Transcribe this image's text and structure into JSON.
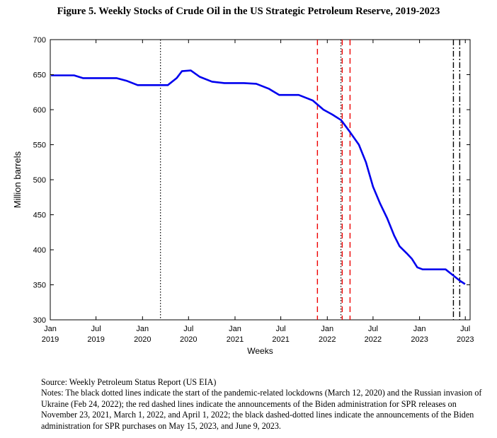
{
  "title": "Figure 5. Weekly Stocks of Crude Oil in the US Strategic Petroleum Reserve, 2019-2023",
  "source": "Source: Weekly Petroleum Status Report (US EIA)",
  "notes": "Notes: The black dotted lines indicate the start of the pandemic-related lockdowns (March 12, 2020) and the Russian invasion of Ukraine (Feb 24, 2022); the red dashed lines indicate the announcements of the Biden administration for SPR releases on November 23, 2021, March 1, 2022, and April 1, 2022; the black dashed-dotted lines indicate the announcements of the Biden administration for SPR purchases on May 15, 2023, and June 9, 2023.",
  "colors": {
    "series": "#0000ee",
    "red_lines": "#ee0000",
    "black_lines": "#000000"
  },
  "chart_data": {
    "type": "line",
    "xlabel": "Weeks",
    "ylabel": "Million barrels",
    "xlim": [
      "2019-01-01",
      "2023-07-20"
    ],
    "ylim": [
      300,
      700
    ],
    "yticks": [
      300,
      350,
      400,
      450,
      500,
      550,
      600,
      650,
      700
    ],
    "xticks": [
      {
        "date": "2019-01-01",
        "line1": "Jan",
        "line2": "2019"
      },
      {
        "date": "2019-07-01",
        "line1": "Jul",
        "line2": "2019"
      },
      {
        "date": "2020-01-01",
        "line1": "Jan",
        "line2": "2020"
      },
      {
        "date": "2020-07-01",
        "line1": "Jul",
        "line2": "2020"
      },
      {
        "date": "2021-01-01",
        "line1": "Jan",
        "line2": "2021"
      },
      {
        "date": "2021-07-01",
        "line1": "Jul",
        "line2": "2021"
      },
      {
        "date": "2022-01-01",
        "line1": "Jan",
        "line2": "2022"
      },
      {
        "date": "2022-07-01",
        "line1": "Jul",
        "line2": "2022"
      },
      {
        "date": "2023-01-01",
        "line1": "Jan",
        "line2": "2023"
      },
      {
        "date": "2023-07-01",
        "line1": "Jul",
        "line2": "2023"
      }
    ],
    "grid": false,
    "series": [
      {
        "points": [
          [
            "2019-01-04",
            649
          ],
          [
            "2019-04-05",
            649
          ],
          [
            "2019-05-10",
            645
          ],
          [
            "2019-09-20",
            645
          ],
          [
            "2019-11-01",
            641
          ],
          [
            "2019-12-13",
            635
          ],
          [
            "2020-02-14",
            635
          ],
          [
            "2020-04-10",
            635
          ],
          [
            "2020-05-15",
            645
          ],
          [
            "2020-06-05",
            655
          ],
          [
            "2020-07-10",
            656
          ],
          [
            "2020-08-14",
            647
          ],
          [
            "2020-10-02",
            640
          ],
          [
            "2020-11-20",
            638
          ],
          [
            "2021-02-05",
            638
          ],
          [
            "2021-03-26",
            637
          ],
          [
            "2021-05-14",
            630
          ],
          [
            "2021-06-25",
            621
          ],
          [
            "2021-09-10",
            621
          ],
          [
            "2021-11-05",
            613
          ],
          [
            "2021-12-17",
            600
          ],
          [
            "2022-01-21",
            593
          ],
          [
            "2022-02-25",
            585
          ],
          [
            "2022-04-01",
            568
          ],
          [
            "2022-05-06",
            550
          ],
          [
            "2022-06-03",
            525
          ],
          [
            "2022-07-01",
            490
          ],
          [
            "2022-07-29",
            466
          ],
          [
            "2022-08-26",
            445
          ],
          [
            "2022-09-23",
            420
          ],
          [
            "2022-10-14",
            405
          ],
          [
            "2022-11-11",
            395
          ],
          [
            "2022-12-02",
            387
          ],
          [
            "2022-12-23",
            375
          ],
          [
            "2023-01-13",
            372
          ],
          [
            "2023-04-14",
            372
          ],
          [
            "2023-05-19",
            362
          ],
          [
            "2023-06-09",
            356
          ],
          [
            "2023-06-30",
            351
          ]
        ]
      }
    ],
    "event_lines": [
      {
        "date": "2020-03-12",
        "style": "dotted",
        "color": "#000000"
      },
      {
        "date": "2022-02-24",
        "style": "dotted",
        "color": "#000000"
      },
      {
        "date": "2021-11-23",
        "style": "dashed",
        "color": "#ee0000"
      },
      {
        "date": "2022-03-01",
        "style": "dashed",
        "color": "#ee0000"
      },
      {
        "date": "2022-04-01",
        "style": "dashed",
        "color": "#ee0000"
      },
      {
        "date": "2023-05-15",
        "style": "dashdot",
        "color": "#000000"
      },
      {
        "date": "2023-06-09",
        "style": "dashdot",
        "color": "#000000"
      }
    ]
  }
}
